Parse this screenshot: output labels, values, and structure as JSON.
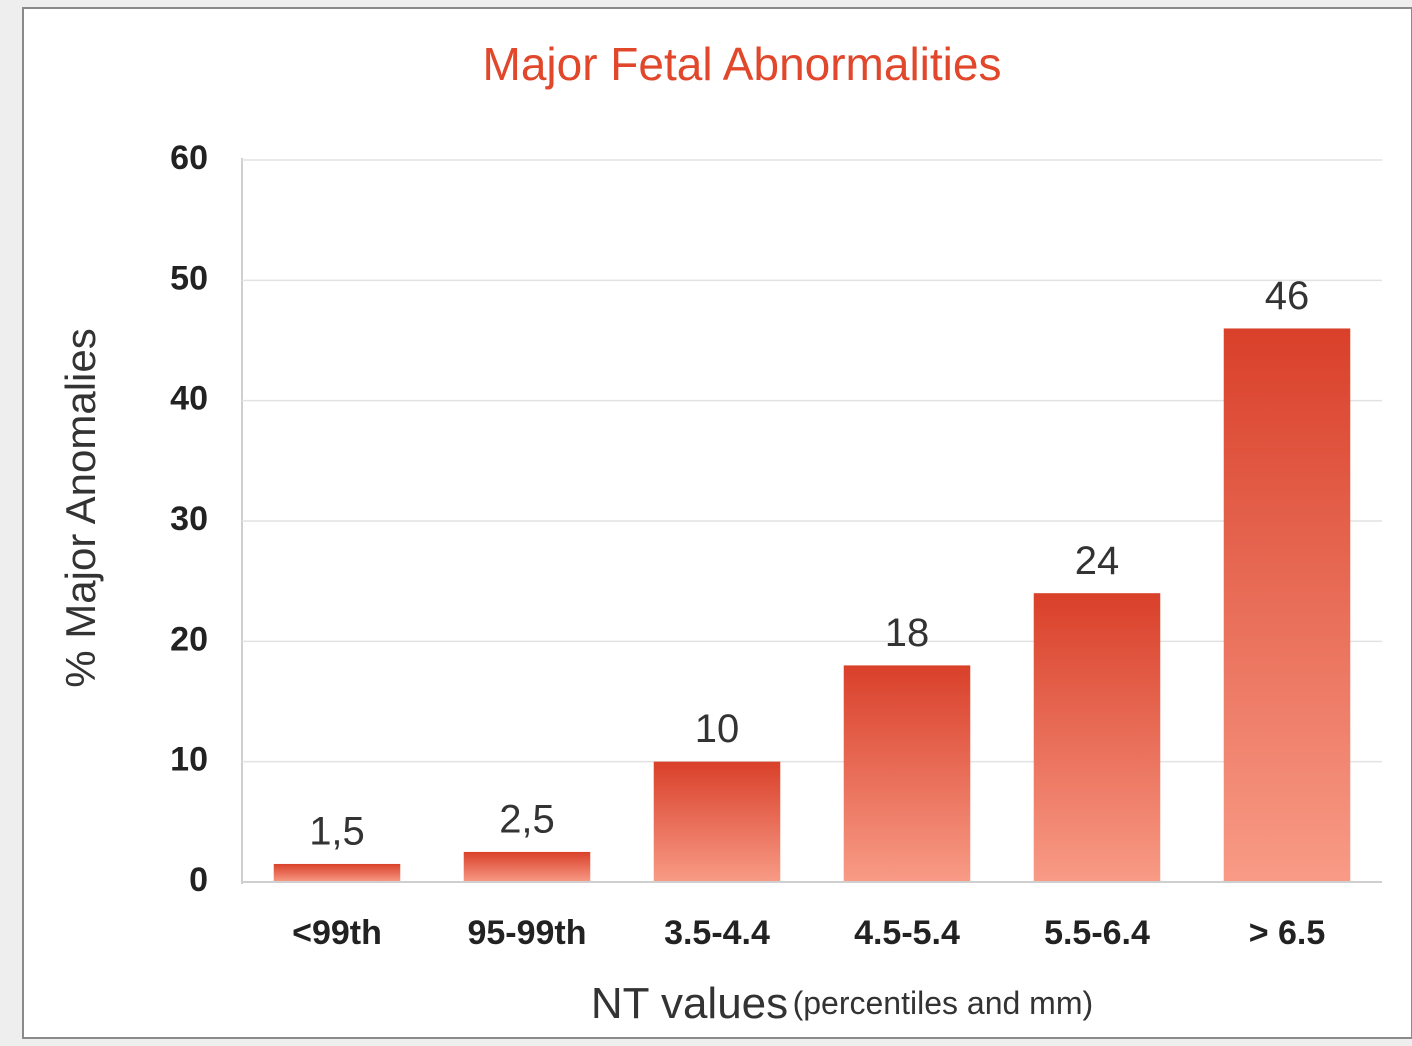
{
  "chart_data": {
    "type": "bar",
    "title": "Major Fetal Abnormalities",
    "y_label": "% Major Anomalies",
    "x_label": "NT values",
    "x_label_note": "(percentiles and mm)",
    "categories": [
      "<99th",
      "95-99th",
      "3.5-4.4",
      "4.5-5.4",
      "5.5-6.4",
      "> 6.5"
    ],
    "values": [
      1.5,
      2.5,
      10,
      18,
      24,
      46
    ],
    "value_labels": [
      "1,5",
      "2,5",
      "10",
      "18",
      "24",
      "46"
    ],
    "color": "#dc4129",
    "ylim": [
      0,
      60
    ],
    "yticks": [
      0,
      10,
      20,
      30,
      40,
      50,
      60
    ],
    "grid": true
  }
}
